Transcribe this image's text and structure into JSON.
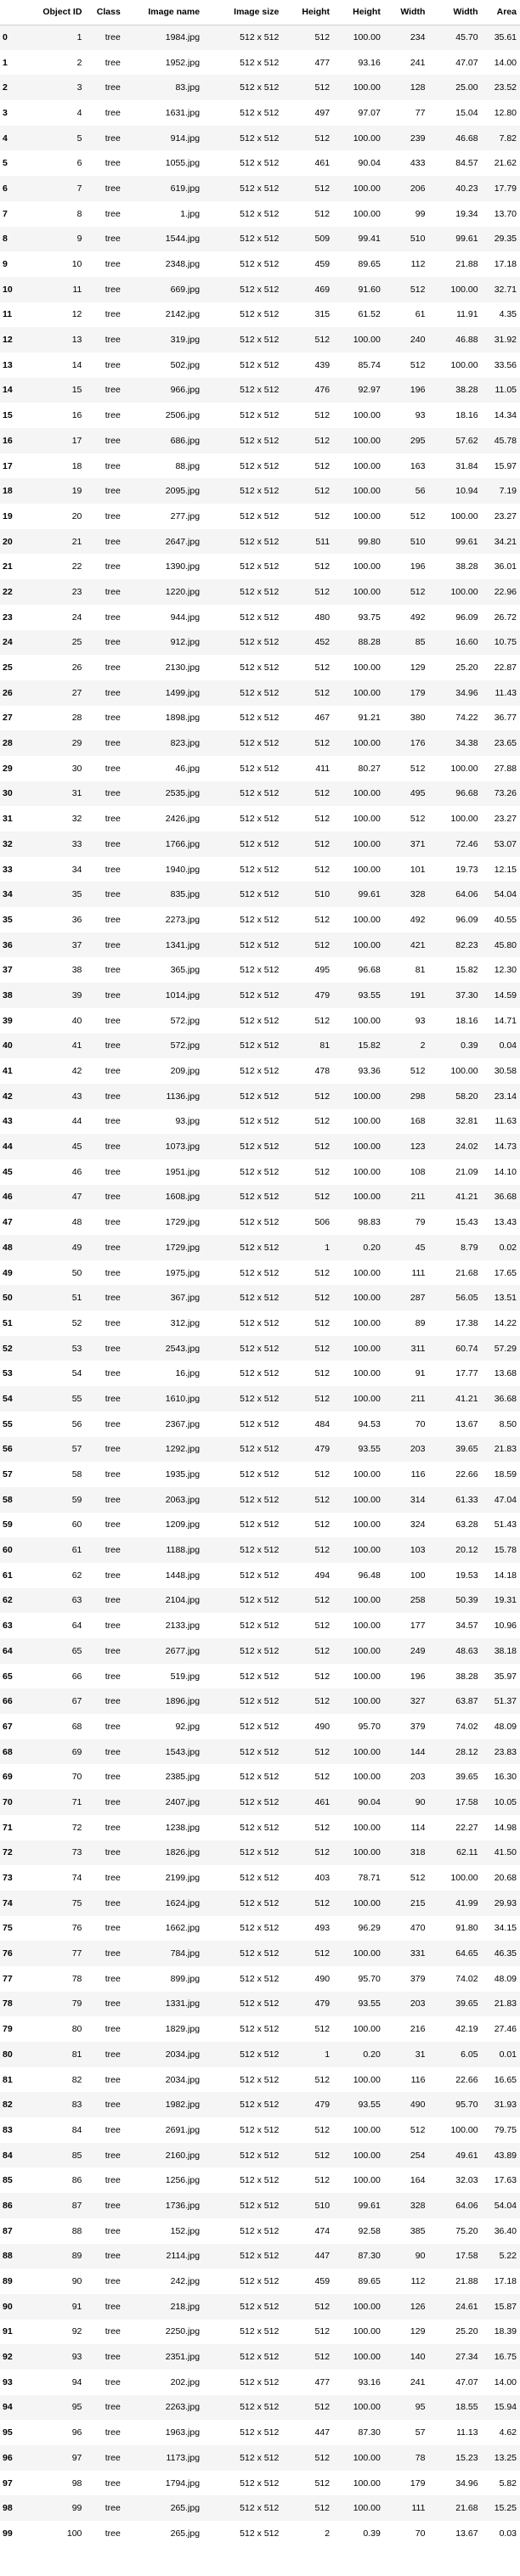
{
  "columns": [
    "",
    "Object ID",
    "Class",
    "Image name",
    "Image size",
    "Height",
    "Height",
    "Width",
    "Width",
    "Area"
  ],
  "rows": [
    [
      "0",
      "1",
      "tree",
      "1984.jpg",
      "512 x 512",
      "512",
      "100.00",
      "234",
      "45.70",
      "35.61"
    ],
    [
      "1",
      "2",
      "tree",
      "1952.jpg",
      "512 x 512",
      "477",
      "93.16",
      "241",
      "47.07",
      "14.00"
    ],
    [
      "2",
      "3",
      "tree",
      "83.jpg",
      "512 x 512",
      "512",
      "100.00",
      "128",
      "25.00",
      "23.52"
    ],
    [
      "3",
      "4",
      "tree",
      "1631.jpg",
      "512 x 512",
      "497",
      "97.07",
      "77",
      "15.04",
      "12.80"
    ],
    [
      "4",
      "5",
      "tree",
      "914.jpg",
      "512 x 512",
      "512",
      "100.00",
      "239",
      "46.68",
      "7.82"
    ],
    [
      "5",
      "6",
      "tree",
      "1055.jpg",
      "512 x 512",
      "461",
      "90.04",
      "433",
      "84.57",
      "21.62"
    ],
    [
      "6",
      "7",
      "tree",
      "619.jpg",
      "512 x 512",
      "512",
      "100.00",
      "206",
      "40.23",
      "17.79"
    ],
    [
      "7",
      "8",
      "tree",
      "1.jpg",
      "512 x 512",
      "512",
      "100.00",
      "99",
      "19.34",
      "13.70"
    ],
    [
      "8",
      "9",
      "tree",
      "1544.jpg",
      "512 x 512",
      "509",
      "99.41",
      "510",
      "99.61",
      "29.35"
    ],
    [
      "9",
      "10",
      "tree",
      "2348.jpg",
      "512 x 512",
      "459",
      "89.65",
      "112",
      "21.88",
      "17.18"
    ],
    [
      "10",
      "11",
      "tree",
      "669.jpg",
      "512 x 512",
      "469",
      "91.60",
      "512",
      "100.00",
      "32.71"
    ],
    [
      "11",
      "12",
      "tree",
      "2142.jpg",
      "512 x 512",
      "315",
      "61.52",
      "61",
      "11.91",
      "4.35"
    ],
    [
      "12",
      "13",
      "tree",
      "319.jpg",
      "512 x 512",
      "512",
      "100.00",
      "240",
      "46.88",
      "31.92"
    ],
    [
      "13",
      "14",
      "tree",
      "502.jpg",
      "512 x 512",
      "439",
      "85.74",
      "512",
      "100.00",
      "33.56"
    ],
    [
      "14",
      "15",
      "tree",
      "966.jpg",
      "512 x 512",
      "476",
      "92.97",
      "196",
      "38.28",
      "11.05"
    ],
    [
      "15",
      "16",
      "tree",
      "2506.jpg",
      "512 x 512",
      "512",
      "100.00",
      "93",
      "18.16",
      "14.34"
    ],
    [
      "16",
      "17",
      "tree",
      "686.jpg",
      "512 x 512",
      "512",
      "100.00",
      "295",
      "57.62",
      "45.78"
    ],
    [
      "17",
      "18",
      "tree",
      "88.jpg",
      "512 x 512",
      "512",
      "100.00",
      "163",
      "31.84",
      "15.97"
    ],
    [
      "18",
      "19",
      "tree",
      "2095.jpg",
      "512 x 512",
      "512",
      "100.00",
      "56",
      "10.94",
      "7.19"
    ],
    [
      "19",
      "20",
      "tree",
      "277.jpg",
      "512 x 512",
      "512",
      "100.00",
      "512",
      "100.00",
      "23.27"
    ],
    [
      "20",
      "21",
      "tree",
      "2647.jpg",
      "512 x 512",
      "511",
      "99.80",
      "510",
      "99.61",
      "34.21"
    ],
    [
      "21",
      "22",
      "tree",
      "1390.jpg",
      "512 x 512",
      "512",
      "100.00",
      "196",
      "38.28",
      "36.01"
    ],
    [
      "22",
      "23",
      "tree",
      "1220.jpg",
      "512 x 512",
      "512",
      "100.00",
      "512",
      "100.00",
      "22.96"
    ],
    [
      "23",
      "24",
      "tree",
      "944.jpg",
      "512 x 512",
      "480",
      "93.75",
      "492",
      "96.09",
      "26.72"
    ],
    [
      "24",
      "25",
      "tree",
      "912.jpg",
      "512 x 512",
      "452",
      "88.28",
      "85",
      "16.60",
      "10.75"
    ],
    [
      "25",
      "26",
      "tree",
      "2130.jpg",
      "512 x 512",
      "512",
      "100.00",
      "129",
      "25.20",
      "22.87"
    ],
    [
      "26",
      "27",
      "tree",
      "1499.jpg",
      "512 x 512",
      "512",
      "100.00",
      "179",
      "34.96",
      "11.43"
    ],
    [
      "27",
      "28",
      "tree",
      "1898.jpg",
      "512 x 512",
      "467",
      "91.21",
      "380",
      "74.22",
      "36.77"
    ],
    [
      "28",
      "29",
      "tree",
      "823.jpg",
      "512 x 512",
      "512",
      "100.00",
      "176",
      "34.38",
      "23.65"
    ],
    [
      "29",
      "30",
      "tree",
      "46.jpg",
      "512 x 512",
      "411",
      "80.27",
      "512",
      "100.00",
      "27.88"
    ],
    [
      "30",
      "31",
      "tree",
      "2535.jpg",
      "512 x 512",
      "512",
      "100.00",
      "495",
      "96.68",
      "73.26"
    ],
    [
      "31",
      "32",
      "tree",
      "2426.jpg",
      "512 x 512",
      "512",
      "100.00",
      "512",
      "100.00",
      "23.27"
    ],
    [
      "32",
      "33",
      "tree",
      "1766.jpg",
      "512 x 512",
      "512",
      "100.00",
      "371",
      "72.46",
      "53.07"
    ],
    [
      "33",
      "34",
      "tree",
      "1940.jpg",
      "512 x 512",
      "512",
      "100.00",
      "101",
      "19.73",
      "12.15"
    ],
    [
      "34",
      "35",
      "tree",
      "835.jpg",
      "512 x 512",
      "510",
      "99.61",
      "328",
      "64.06",
      "54.04"
    ],
    [
      "35",
      "36",
      "tree",
      "2273.jpg",
      "512 x 512",
      "512",
      "100.00",
      "492",
      "96.09",
      "40.55"
    ],
    [
      "36",
      "37",
      "tree",
      "1341.jpg",
      "512 x 512",
      "512",
      "100.00",
      "421",
      "82.23",
      "45.80"
    ],
    [
      "37",
      "38",
      "tree",
      "365.jpg",
      "512 x 512",
      "495",
      "96.68",
      "81",
      "15.82",
      "12.30"
    ],
    [
      "38",
      "39",
      "tree",
      "1014.jpg",
      "512 x 512",
      "479",
      "93.55",
      "191",
      "37.30",
      "14.59"
    ],
    [
      "39",
      "40",
      "tree",
      "572.jpg",
      "512 x 512",
      "512",
      "100.00",
      "93",
      "18.16",
      "14.71"
    ],
    [
      "40",
      "41",
      "tree",
      "572.jpg",
      "512 x 512",
      "81",
      "15.82",
      "2",
      "0.39",
      "0.04"
    ],
    [
      "41",
      "42",
      "tree",
      "209.jpg",
      "512 x 512",
      "478",
      "93.36",
      "512",
      "100.00",
      "30.58"
    ],
    [
      "42",
      "43",
      "tree",
      "1136.jpg",
      "512 x 512",
      "512",
      "100.00",
      "298",
      "58.20",
      "23.14"
    ],
    [
      "43",
      "44",
      "tree",
      "93.jpg",
      "512 x 512",
      "512",
      "100.00",
      "168",
      "32.81",
      "11.63"
    ],
    [
      "44",
      "45",
      "tree",
      "1073.jpg",
      "512 x 512",
      "512",
      "100.00",
      "123",
      "24.02",
      "14.73"
    ],
    [
      "45",
      "46",
      "tree",
      "1951.jpg",
      "512 x 512",
      "512",
      "100.00",
      "108",
      "21.09",
      "14.10"
    ],
    [
      "46",
      "47",
      "tree",
      "1608.jpg",
      "512 x 512",
      "512",
      "100.00",
      "211",
      "41.21",
      "36.68"
    ],
    [
      "47",
      "48",
      "tree",
      "1729.jpg",
      "512 x 512",
      "506",
      "98.83",
      "79",
      "15.43",
      "13.43"
    ],
    [
      "48",
      "49",
      "tree",
      "1729.jpg",
      "512 x 512",
      "1",
      "0.20",
      "45",
      "8.79",
      "0.02"
    ],
    [
      "49",
      "50",
      "tree",
      "1975.jpg",
      "512 x 512",
      "512",
      "100.00",
      "111",
      "21.68",
      "17.65"
    ],
    [
      "50",
      "51",
      "tree",
      "367.jpg",
      "512 x 512",
      "512",
      "100.00",
      "287",
      "56.05",
      "13.51"
    ],
    [
      "51",
      "52",
      "tree",
      "312.jpg",
      "512 x 512",
      "512",
      "100.00",
      "89",
      "17.38",
      "14.22"
    ],
    [
      "52",
      "53",
      "tree",
      "2543.jpg",
      "512 x 512",
      "512",
      "100.00",
      "311",
      "60.74",
      "57.29"
    ],
    [
      "53",
      "54",
      "tree",
      "16.jpg",
      "512 x 512",
      "512",
      "100.00",
      "91",
      "17.77",
      "13.68"
    ],
    [
      "54",
      "55",
      "tree",
      "1610.jpg",
      "512 x 512",
      "512",
      "100.00",
      "211",
      "41.21",
      "36.68"
    ],
    [
      "55",
      "56",
      "tree",
      "2367.jpg",
      "512 x 512",
      "484",
      "94.53",
      "70",
      "13.67",
      "8.50"
    ],
    [
      "56",
      "57",
      "tree",
      "1292.jpg",
      "512 x 512",
      "479",
      "93.55",
      "203",
      "39.65",
      "21.83"
    ],
    [
      "57",
      "58",
      "tree",
      "1935.jpg",
      "512 x 512",
      "512",
      "100.00",
      "116",
      "22.66",
      "18.59"
    ],
    [
      "58",
      "59",
      "tree",
      "2063.jpg",
      "512 x 512",
      "512",
      "100.00",
      "314",
      "61.33",
      "47.04"
    ],
    [
      "59",
      "60",
      "tree",
      "1209.jpg",
      "512 x 512",
      "512",
      "100.00",
      "324",
      "63.28",
      "51.43"
    ],
    [
      "60",
      "61",
      "tree",
      "1188.jpg",
      "512 x 512",
      "512",
      "100.00",
      "103",
      "20.12",
      "15.78"
    ],
    [
      "61",
      "62",
      "tree",
      "1448.jpg",
      "512 x 512",
      "494",
      "96.48",
      "100",
      "19.53",
      "14.18"
    ],
    [
      "62",
      "63",
      "tree",
      "2104.jpg",
      "512 x 512",
      "512",
      "100.00",
      "258",
      "50.39",
      "19.31"
    ],
    [
      "63",
      "64",
      "tree",
      "2133.jpg",
      "512 x 512",
      "512",
      "100.00",
      "177",
      "34.57",
      "10.96"
    ],
    [
      "64",
      "65",
      "tree",
      "2677.jpg",
      "512 x 512",
      "512",
      "100.00",
      "249",
      "48.63",
      "38.18"
    ],
    [
      "65",
      "66",
      "tree",
      "519.jpg",
      "512 x 512",
      "512",
      "100.00",
      "196",
      "38.28",
      "35.97"
    ],
    [
      "66",
      "67",
      "tree",
      "1896.jpg",
      "512 x 512",
      "512",
      "100.00",
      "327",
      "63.87",
      "51.37"
    ],
    [
      "67",
      "68",
      "tree",
      "92.jpg",
      "512 x 512",
      "490",
      "95.70",
      "379",
      "74.02",
      "48.09"
    ],
    [
      "68",
      "69",
      "tree",
      "1543.jpg",
      "512 x 512",
      "512",
      "100.00",
      "144",
      "28.12",
      "23.83"
    ],
    [
      "69",
      "70",
      "tree",
      "2385.jpg",
      "512 x 512",
      "512",
      "100.00",
      "203",
      "39.65",
      "16.30"
    ],
    [
      "70",
      "71",
      "tree",
      "2407.jpg",
      "512 x 512",
      "461",
      "90.04",
      "90",
      "17.58",
      "10.05"
    ],
    [
      "71",
      "72",
      "tree",
      "1238.jpg",
      "512 x 512",
      "512",
      "100.00",
      "114",
      "22.27",
      "14.98"
    ],
    [
      "72",
      "73",
      "tree",
      "1826.jpg",
      "512 x 512",
      "512",
      "100.00",
      "318",
      "62.11",
      "41.50"
    ],
    [
      "73",
      "74",
      "tree",
      "2199.jpg",
      "512 x 512",
      "403",
      "78.71",
      "512",
      "100.00",
      "20.68"
    ],
    [
      "74",
      "75",
      "tree",
      "1624.jpg",
      "512 x 512",
      "512",
      "100.00",
      "215",
      "41.99",
      "29.93"
    ],
    [
      "75",
      "76",
      "tree",
      "1662.jpg",
      "512 x 512",
      "493",
      "96.29",
      "470",
      "91.80",
      "34.15"
    ],
    [
      "76",
      "77",
      "tree",
      "784.jpg",
      "512 x 512",
      "512",
      "100.00",
      "331",
      "64.65",
      "46.35"
    ],
    [
      "77",
      "78",
      "tree",
      "899.jpg",
      "512 x 512",
      "490",
      "95.70",
      "379",
      "74.02",
      "48.09"
    ],
    [
      "78",
      "79",
      "tree",
      "1331.jpg",
      "512 x 512",
      "479",
      "93.55",
      "203",
      "39.65",
      "21.83"
    ],
    [
      "79",
      "80",
      "tree",
      "1829.jpg",
      "512 x 512",
      "512",
      "100.00",
      "216",
      "42.19",
      "27.46"
    ],
    [
      "80",
      "81",
      "tree",
      "2034.jpg",
      "512 x 512",
      "1",
      "0.20",
      "31",
      "6.05",
      "0.01"
    ],
    [
      "81",
      "82",
      "tree",
      "2034.jpg",
      "512 x 512",
      "512",
      "100.00",
      "116",
      "22.66",
      "16.65"
    ],
    [
      "82",
      "83",
      "tree",
      "1982.jpg",
      "512 x 512",
      "479",
      "93.55",
      "490",
      "95.70",
      "31.93"
    ],
    [
      "83",
      "84",
      "tree",
      "2691.jpg",
      "512 x 512",
      "512",
      "100.00",
      "512",
      "100.00",
      "79.75"
    ],
    [
      "84",
      "85",
      "tree",
      "2160.jpg",
      "512 x 512",
      "512",
      "100.00",
      "254",
      "49.61",
      "43.89"
    ],
    [
      "85",
      "86",
      "tree",
      "1256.jpg",
      "512 x 512",
      "512",
      "100.00",
      "164",
      "32.03",
      "17.63"
    ],
    [
      "86",
      "87",
      "tree",
      "1736.jpg",
      "512 x 512",
      "510",
      "99.61",
      "328",
      "64.06",
      "54.04"
    ],
    [
      "87",
      "88",
      "tree",
      "152.jpg",
      "512 x 512",
      "474",
      "92.58",
      "385",
      "75.20",
      "36.40"
    ],
    [
      "88",
      "89",
      "tree",
      "2114.jpg",
      "512 x 512",
      "447",
      "87.30",
      "90",
      "17.58",
      "5.22"
    ],
    [
      "89",
      "90",
      "tree",
      "242.jpg",
      "512 x 512",
      "459",
      "89.65",
      "112",
      "21.88",
      "17.18"
    ],
    [
      "90",
      "91",
      "tree",
      "218.jpg",
      "512 x 512",
      "512",
      "100.00",
      "126",
      "24.61",
      "15.87"
    ],
    [
      "91",
      "92",
      "tree",
      "2250.jpg",
      "512 x 512",
      "512",
      "100.00",
      "129",
      "25.20",
      "18.39"
    ],
    [
      "92",
      "93",
      "tree",
      "2351.jpg",
      "512 x 512",
      "512",
      "100.00",
      "140",
      "27.34",
      "16.75"
    ],
    [
      "93",
      "94",
      "tree",
      "202.jpg",
      "512 x 512",
      "477",
      "93.16",
      "241",
      "47.07",
      "14.00"
    ],
    [
      "94",
      "95",
      "tree",
      "2263.jpg",
      "512 x 512",
      "512",
      "100.00",
      "95",
      "18.55",
      "15.94"
    ],
    [
      "95",
      "96",
      "tree",
      "1963.jpg",
      "512 x 512",
      "447",
      "87.30",
      "57",
      "11.13",
      "4.62"
    ],
    [
      "96",
      "97",
      "tree",
      "1173.jpg",
      "512 x 512",
      "512",
      "100.00",
      "78",
      "15.23",
      "13.25"
    ],
    [
      "97",
      "98",
      "tree",
      "1794.jpg",
      "512 x 512",
      "512",
      "100.00",
      "179",
      "34.96",
      "5.82"
    ],
    [
      "98",
      "99",
      "tree",
      "265.jpg",
      "512 x 512",
      "512",
      "100.00",
      "111",
      "21.68",
      "15.25"
    ],
    [
      "99",
      "100",
      "tree",
      "265.jpg",
      "512 x 512",
      "2",
      "0.39",
      "70",
      "13.67",
      "0.03"
    ]
  ]
}
